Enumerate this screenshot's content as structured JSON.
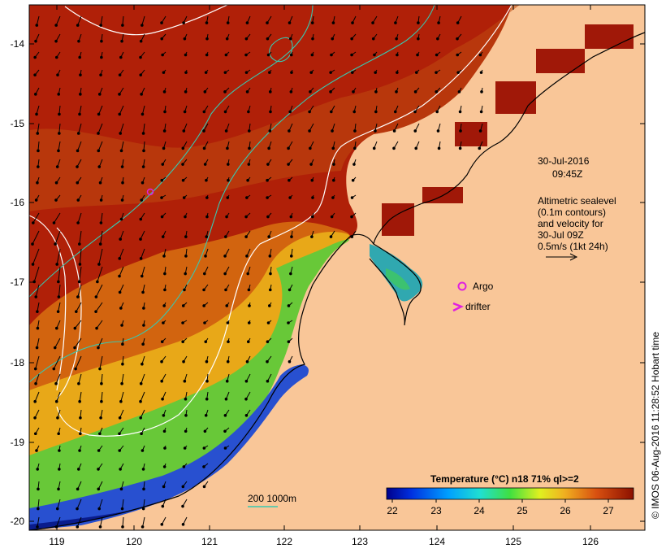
{
  "map": {
    "axes": {
      "lon_ticks": [
        "119",
        "120",
        "121",
        "122",
        "123",
        "124",
        "125",
        "126"
      ],
      "lat_ticks": [
        "-14",
        "-15",
        "-16",
        "-17",
        "-18",
        "-19",
        "-20"
      ]
    },
    "date_label": "30-Jul-2016",
    "time_label": "09:45Z",
    "altimetry_note": [
      "Altimetric sealevel",
      "(0.1m contours)",
      "and velocity for",
      "30-Jul 09Z",
      "0.5m/s (1kt 24h)"
    ],
    "legend": {
      "argo_label": "Argo",
      "drifter_label": "drifter"
    },
    "isobath_label": "200  1000m",
    "colorbar": {
      "title": "Temperature (°C) n18 71% ql>=2",
      "ticks": [
        "22",
        "23",
        "24",
        "25",
        "26",
        "27"
      ]
    },
    "credit": "© IMOS 06-Aug-2016 11:28:52 Hobart time",
    "colors": {
      "land": "#f9c698",
      "warm": "#a81b05",
      "mid": "#d2640f",
      "green": "#63c93a",
      "cool": "#1e4bc8",
      "argo": "#e020e0",
      "isobath": "#38c8b0"
    }
  }
}
